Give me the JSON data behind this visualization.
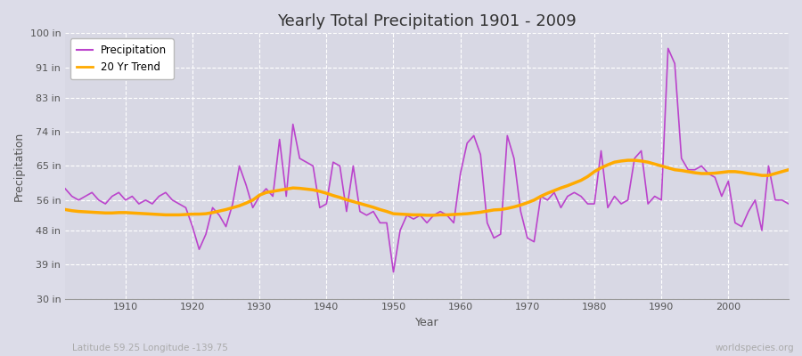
{
  "title": "Yearly Total Precipitation 1901 - 2009",
  "xlabel": "Year",
  "ylabel": "Precipitation",
  "subtitle_left": "Latitude 59.25 Longitude -139.75",
  "subtitle_right": "worldspecies.org",
  "precip_color": "#bb44cc",
  "trend_color": "#ffaa00",
  "background_color": "#dcdce8",
  "plot_bg_color": "#d8d8e4",
  "grid_color": "#ffffff",
  "ylim": [
    30,
    100
  ],
  "yticks": [
    30,
    39,
    48,
    56,
    65,
    74,
    83,
    91,
    100
  ],
  "ytick_labels": [
    "30 in",
    "39 in",
    "48 in",
    "56 in",
    "65 in",
    "74 in",
    "83 in",
    "91 in",
    "100 in"
  ],
  "years": [
    1901,
    1902,
    1903,
    1904,
    1905,
    1906,
    1907,
    1908,
    1909,
    1910,
    1911,
    1912,
    1913,
    1914,
    1915,
    1916,
    1917,
    1918,
    1919,
    1920,
    1921,
    1922,
    1923,
    1924,
    1925,
    1926,
    1927,
    1928,
    1929,
    1930,
    1931,
    1932,
    1933,
    1934,
    1935,
    1936,
    1937,
    1938,
    1939,
    1940,
    1941,
    1942,
    1943,
    1944,
    1945,
    1946,
    1947,
    1948,
    1949,
    1950,
    1951,
    1952,
    1953,
    1954,
    1955,
    1956,
    1957,
    1958,
    1959,
    1960,
    1961,
    1962,
    1963,
    1964,
    1965,
    1966,
    1967,
    1968,
    1969,
    1970,
    1971,
    1972,
    1973,
    1974,
    1975,
    1976,
    1977,
    1978,
    1979,
    1980,
    1981,
    1982,
    1983,
    1984,
    1985,
    1986,
    1987,
    1988,
    1989,
    1990,
    1991,
    1992,
    1993,
    1994,
    1995,
    1996,
    1997,
    1998,
    1999,
    2000,
    2001,
    2002,
    2003,
    2004,
    2005,
    2006,
    2007,
    2008,
    2009
  ],
  "precip": [
    59,
    57,
    56,
    57,
    58,
    56,
    55,
    57,
    58,
    56,
    57,
    55,
    56,
    55,
    57,
    58,
    56,
    55,
    54,
    49,
    43,
    47,
    54,
    52,
    49,
    55,
    65,
    60,
    54,
    57,
    59,
    57,
    72,
    57,
    76,
    67,
    66,
    65,
    54,
    55,
    66,
    65,
    53,
    65,
    53,
    52,
    53,
    50,
    50,
    37,
    48,
    52,
    51,
    52,
    50,
    52,
    53,
    52,
    50,
    63,
    71,
    73,
    68,
    50,
    46,
    47,
    73,
    67,
    53,
    46,
    45,
    57,
    56,
    58,
    54,
    57,
    58,
    57,
    55,
    55,
    69,
    54,
    57,
    55,
    56,
    67,
    69,
    55,
    57,
    56,
    96,
    92,
    67,
    64,
    64,
    65,
    63,
    62,
    57,
    61,
    50,
    49,
    53,
    56,
    48,
    65,
    56,
    56,
    55
  ],
  "trend": [
    53.5,
    53.2,
    53.0,
    52.9,
    52.8,
    52.7,
    52.6,
    52.6,
    52.7,
    52.7,
    52.6,
    52.5,
    52.4,
    52.3,
    52.2,
    52.1,
    52.1,
    52.1,
    52.2,
    52.3,
    52.3,
    52.4,
    52.7,
    53.1,
    53.5,
    54.0,
    54.5,
    55.2,
    56.0,
    57.3,
    58.0,
    58.3,
    58.6,
    58.9,
    59.2,
    59.1,
    58.9,
    58.7,
    58.3,
    57.8,
    57.2,
    56.7,
    56.1,
    55.6,
    55.1,
    54.6,
    54.1,
    53.5,
    53.0,
    52.4,
    52.3,
    52.2,
    52.1,
    52.1,
    52.0,
    52.0,
    52.1,
    52.1,
    52.2,
    52.3,
    52.4,
    52.6,
    52.8,
    53.1,
    53.4,
    53.5,
    53.8,
    54.2,
    54.7,
    55.3,
    56.0,
    57.0,
    57.8,
    58.5,
    59.2,
    59.8,
    60.5,
    61.2,
    62.2,
    63.5,
    64.5,
    65.3,
    66.0,
    66.3,
    66.5,
    66.5,
    66.3,
    66.0,
    65.5,
    65.0,
    64.5,
    64.0,
    63.8,
    63.5,
    63.2,
    63.0,
    63.0,
    63.1,
    63.3,
    63.5,
    63.5,
    63.3,
    63.0,
    62.8,
    62.5,
    62.5,
    63.0,
    63.5,
    64.0
  ]
}
